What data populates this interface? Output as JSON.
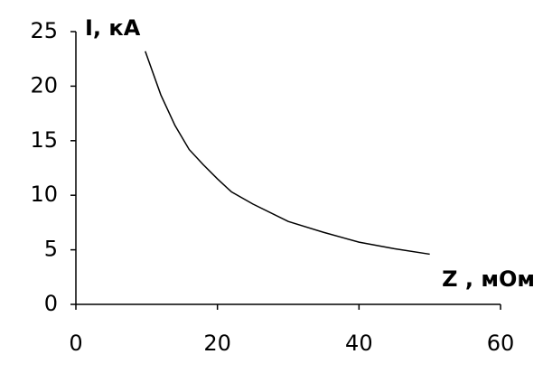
{
  "chart_data": {
    "type": "line",
    "y_label": "I, кА",
    "x_label": "Z  , мОм",
    "series": [
      {
        "color": "#000000",
        "x": [
          9.8,
          12,
          14,
          16,
          18,
          20,
          22,
          25,
          30,
          35,
          40,
          45,
          50
        ],
        "values": [
          23.2,
          19.2,
          16.4,
          14.2,
          12.8,
          11.5,
          10.3,
          9.2,
          7.6,
          6.6,
          5.7,
          5.1,
          4.6
        ]
      }
    ],
    "xlim": [
      0,
      60
    ],
    "xticks": [
      0,
      20,
      40,
      60
    ],
    "ylim": [
      0,
      25
    ],
    "yticks": [
      0,
      5,
      10,
      15,
      20,
      25
    ],
    "grid": false
  }
}
